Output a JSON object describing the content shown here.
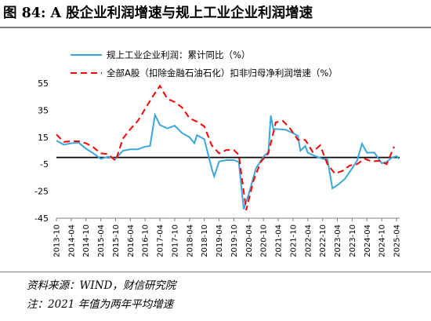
{
  "title": "图 84:  A 股企业利润增速与规上工业企业利润增速",
  "footer": {
    "source": "资料来源：WIND，财信研究院",
    "note": "注：2021 年值为两年平均增速"
  },
  "chart_data": {
    "type": "line",
    "ylim": [
      -45,
      55
    ],
    "yticks": [
      -45,
      -25,
      -5,
      15,
      35,
      55
    ],
    "ytick_labels": [
      "-45",
      "-25",
      "-5",
      "15",
      "35",
      "55"
    ],
    "xtick_labels": [
      "2013-10",
      "2014-04",
      "2014-10",
      "2015-04",
      "2015-10",
      "2016-04",
      "2016-10",
      "2017-04",
      "2017-10",
      "2018-04",
      "2018-10",
      "2019-04",
      "2019-10",
      "2020-04",
      "2020-10",
      "2021-04",
      "2021-10",
      "2022-04",
      "2022-10",
      "2023-04",
      "2023-10",
      "2024-04",
      "2024-10",
      "2025-04"
    ],
    "legend_position": "top",
    "series": [
      {
        "name": "规上工业企业利润：累计同比（%）",
        "style": "solid",
        "color": "#39a7dc",
        "points": [
          [
            "2013-10",
            12.5
          ],
          [
            "2014-01",
            9.5
          ],
          [
            "2014-04",
            10.5
          ],
          [
            "2014-07",
            11.0
          ],
          [
            "2014-10",
            6.5
          ],
          [
            "2015-01",
            3.0
          ],
          [
            "2015-04",
            -1.0
          ],
          [
            "2015-05",
            -0.5
          ],
          [
            "2015-07",
            0.5
          ],
          [
            "2015-10",
            -1.0
          ],
          [
            "2016-01",
            5.0
          ],
          [
            "2016-04",
            6.0
          ],
          [
            "2016-07",
            6.0
          ],
          [
            "2016-10",
            8.0
          ],
          [
            "2016-12",
            8.5
          ],
          [
            "2017-02",
            31.5
          ],
          [
            "2017-04",
            24.0
          ],
          [
            "2017-07",
            21.5
          ],
          [
            "2017-10",
            23.5
          ],
          [
            "2018-01",
            18.0
          ],
          [
            "2018-04",
            15.0
          ],
          [
            "2018-06",
            10.5
          ],
          [
            "2018-07",
            16.5
          ],
          [
            "2018-10",
            13.5
          ],
          [
            "2019-01",
            -8.0
          ],
          [
            "2019-02",
            -14.0
          ],
          [
            "2019-04",
            -3.0
          ],
          [
            "2019-07",
            -2.0
          ],
          [
            "2019-10",
            -2.0
          ],
          [
            "2019-12",
            -3.3
          ],
          [
            "2020-02",
            -38.3
          ],
          [
            "2020-04",
            -27.5
          ],
          [
            "2020-07",
            -8.0
          ],
          [
            "2020-10",
            0.5
          ],
          [
            "2020-12",
            4.1
          ],
          [
            "2021-01",
            31.0
          ],
          [
            "2021-02",
            21.0
          ],
          [
            "2021-04",
            21.0
          ],
          [
            "2021-07",
            20.5
          ],
          [
            "2021-10",
            18.0
          ],
          [
            "2021-12",
            16.0
          ],
          [
            "2022-01",
            5.0
          ],
          [
            "2022-03",
            8.5
          ],
          [
            "2022-04",
            3.5
          ],
          [
            "2022-07",
            1.0
          ],
          [
            "2022-10",
            -1.0
          ],
          [
            "2022-12",
            -1.5
          ],
          [
            "2023-02",
            -22.9
          ],
          [
            "2023-04",
            -20.6
          ],
          [
            "2023-07",
            -16.0
          ],
          [
            "2023-10",
            -8.0
          ],
          [
            "2023-12",
            -2.3
          ],
          [
            "2024-02",
            10.2
          ],
          [
            "2024-04",
            3.5
          ],
          [
            "2024-07",
            3.6
          ],
          [
            "2024-10",
            -4.3
          ],
          [
            "2024-12",
            -3.3
          ],
          [
            "2025-02",
            -0.3
          ],
          [
            "2025-04",
            1.0
          ],
          [
            "2025-05",
            -1.0
          ]
        ]
      },
      {
        "name": "全部A股（扣除金融石油石化）扣非归母净利润增速（%）",
        "style": "dashed",
        "color": "#ff0000",
        "points": [
          [
            "2013-10",
            17.0
          ],
          [
            "2014-01",
            11.5
          ],
          [
            "2014-04",
            12.0
          ],
          [
            "2014-07",
            12.0
          ],
          [
            "2014-10",
            10.5
          ],
          [
            "2015-01",
            7.5
          ],
          [
            "2015-04",
            3.0
          ],
          [
            "2015-07",
            2.5
          ],
          [
            "2015-10",
            -2.5
          ],
          [
            "2016-01",
            14.0
          ],
          [
            "2016-04",
            21.0
          ],
          [
            "2016-07",
            27.0
          ],
          [
            "2016-10",
            36.0
          ],
          [
            "2017-01",
            45.0
          ],
          [
            "2017-04",
            53.0
          ],
          [
            "2017-07",
            43.5
          ],
          [
            "2017-10",
            41.0
          ],
          [
            "2018-01",
            37.0
          ],
          [
            "2018-04",
            29.0
          ],
          [
            "2018-07",
            26.5
          ],
          [
            "2018-10",
            23.0
          ],
          [
            "2019-01",
            9.0
          ],
          [
            "2019-04",
            3.0
          ],
          [
            "2019-07",
            5.5
          ],
          [
            "2019-10",
            5.5
          ],
          [
            "2019-12",
            2.0
          ],
          [
            "2020-03",
            -39.0
          ],
          [
            "2020-06",
            -17.0
          ],
          [
            "2020-09",
            -3.0
          ],
          [
            "2020-12",
            3.0
          ],
          [
            "2021-03",
            26.0
          ],
          [
            "2021-06",
            27.0
          ],
          [
            "2021-09",
            21.0
          ],
          [
            "2021-12",
            13.0
          ],
          [
            "2022-03",
            13.0
          ],
          [
            "2022-06",
            4.0
          ],
          [
            "2022-09",
            9.0
          ],
          [
            "2022-12",
            -5.0
          ],
          [
            "2023-03",
            -12.0
          ],
          [
            "2023-06",
            -10.0
          ],
          [
            "2023-09",
            -6.0
          ],
          [
            "2023-12",
            -5.0
          ],
          [
            "2024-03",
            -1.0
          ],
          [
            "2024-06",
            -3.0
          ],
          [
            "2024-09",
            -2.5
          ],
          [
            "2024-12",
            -5.0
          ],
          [
            "2025-03",
            8.0
          ]
        ]
      }
    ]
  }
}
